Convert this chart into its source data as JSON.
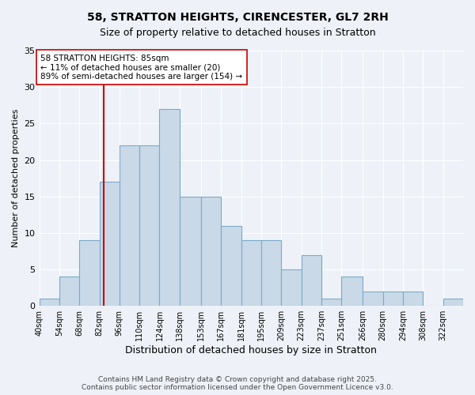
{
  "title1": "58, STRATTON HEIGHTS, CIRENCESTER, GL7 2RH",
  "title2": "Size of property relative to detached houses in Stratton",
  "xlabel": "Distribution of detached houses by size in Stratton",
  "ylabel": "Number of detached properties",
  "bar_values": [
    1,
    4,
    9,
    17,
    22,
    22,
    27,
    15,
    15,
    11,
    9,
    9,
    5,
    7,
    1,
    4,
    2,
    2,
    2,
    0,
    1
  ],
  "bin_labels": [
    "40sqm",
    "54sqm",
    "68sqm",
    "82sqm",
    "96sqm",
    "110sqm",
    "124sqm",
    "138sqm",
    "153sqm",
    "167sqm",
    "181sqm",
    "195sqm",
    "209sqm",
    "223sqm",
    "237sqm",
    "251sqm",
    "266sqm",
    "280sqm",
    "294sqm",
    "308sqm",
    "322sqm"
  ],
  "bin_edges": [
    40,
    54,
    68,
    82,
    96,
    110,
    124,
    138,
    153,
    167,
    181,
    195,
    209,
    223,
    237,
    251,
    266,
    280,
    294,
    308,
    322,
    336
  ],
  "bar_color": "#c9d9e8",
  "bar_edge_color": "#7aaac8",
  "vline_x": 85,
  "vline_color": "#cc0000",
  "annotation_text": "58 STRATTON HEIGHTS: 85sqm\n← 11% of detached houses are smaller (20)\n89% of semi-detached houses are larger (154) →",
  "annotation_box_color": "#ffffff",
  "annotation_box_edge": "#cc0000",
  "ylim": [
    0,
    35
  ],
  "yticks": [
    0,
    5,
    10,
    15,
    20,
    25,
    30,
    35
  ],
  "footer": "Contains HM Land Registry data © Crown copyright and database right 2025.\nContains public sector information licensed under the Open Government Licence v3.0.",
  "bg_color": "#eef2f8",
  "plot_bg_color": "#eef2f8",
  "grid_color": "#ffffff"
}
